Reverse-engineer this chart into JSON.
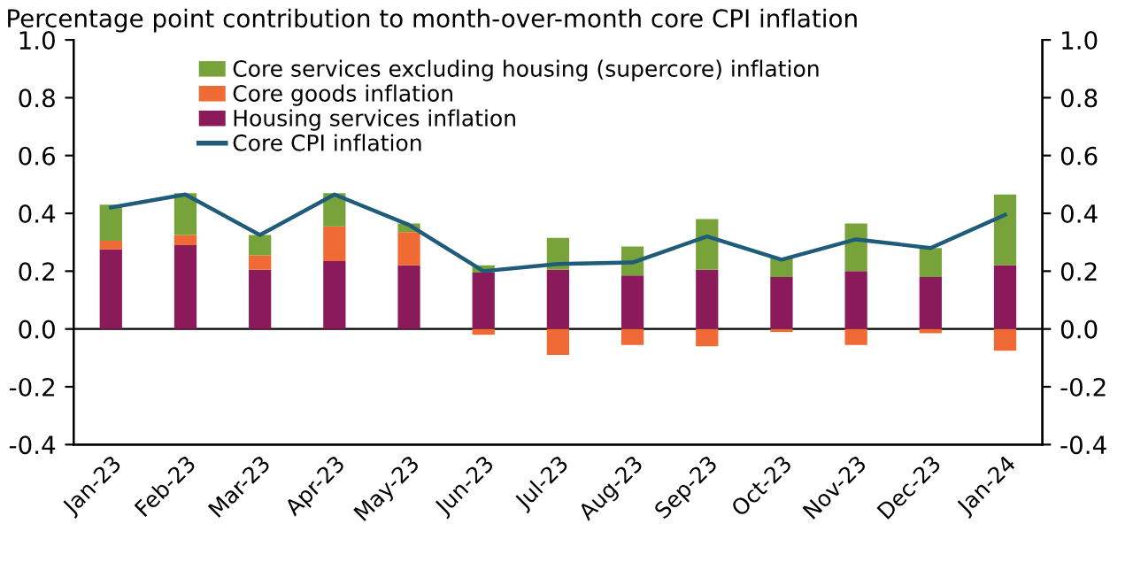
{
  "chart_data": {
    "type": "bar",
    "title": "Percentage point contribution to month-over-month core CPI inflation",
    "categories": [
      "Jan-23",
      "Feb-23",
      "Mar-23",
      "Apr-23",
      "May-23",
      "Jun-23",
      "Jul-23",
      "Aug-23",
      "Sep-23",
      "Oct-23",
      "Nov-23",
      "Dec-23",
      "Jan-24"
    ],
    "stacked": true,
    "series": [
      {
        "name": "Housing services inflation",
        "color": "#8b1a5b",
        "values": [
          0.275,
          0.29,
          0.205,
          0.235,
          0.22,
          0.195,
          0.205,
          0.185,
          0.205,
          0.18,
          0.2,
          0.18,
          0.22
        ]
      },
      {
        "name": "Core goods inflation",
        "color": "#f06a35",
        "values": [
          0.03,
          0.035,
          0.05,
          0.12,
          0.115,
          -0.02,
          -0.09,
          -0.055,
          -0.06,
          -0.01,
          -0.055,
          -0.015,
          -0.075
        ]
      },
      {
        "name": "Core services excluding housing (supercore) inflation",
        "color": "#77a33a",
        "values": [
          0.125,
          0.145,
          0.07,
          0.115,
          0.03,
          0.025,
          0.11,
          0.1,
          0.175,
          0.065,
          0.165,
          0.1,
          0.245
        ]
      },
      {
        "name": "Core CPI inflation",
        "type": "line",
        "color": "#1f5c7a",
        "values": [
          0.42,
          0.465,
          0.325,
          0.465,
          0.36,
          0.2,
          0.225,
          0.23,
          0.32,
          0.24,
          0.31,
          0.28,
          0.395
        ]
      }
    ],
    "ylim": [
      -0.4,
      1.0
    ],
    "yticks": [
      {
        "value": -0.4,
        "label": "-0.4"
      },
      {
        "value": -0.2,
        "label": "-0.2"
      },
      {
        "value": 0.0,
        "label": "0.0"
      },
      {
        "value": 0.2,
        "label": "0.2"
      },
      {
        "value": 0.4,
        "label": "0.4"
      },
      {
        "value": 0.6,
        "label": "0.6"
      },
      {
        "value": 0.8,
        "label": "0.8"
      },
      {
        "value": 1.0,
        "label": "1.0"
      }
    ],
    "y2lim": [
      -0.4,
      1.0
    ],
    "y2ticks": [
      {
        "value": -0.4,
        "label": "-0.4"
      },
      {
        "value": -0.2,
        "label": "-0.2"
      },
      {
        "value": 0.0,
        "label": "0.0"
      },
      {
        "value": 0.2,
        "label": "0.2"
      },
      {
        "value": 0.4,
        "label": "0.4"
      },
      {
        "value": 0.6,
        "label": "0.6"
      },
      {
        "value": 0.8,
        "label": "0.8"
      },
      {
        "value": 1.0,
        "label": "1.0"
      }
    ],
    "ref_lines": [
      {
        "axis": "y",
        "value": 0,
        "color": "#000000"
      }
    ],
    "grid": false,
    "legend": "top"
  }
}
